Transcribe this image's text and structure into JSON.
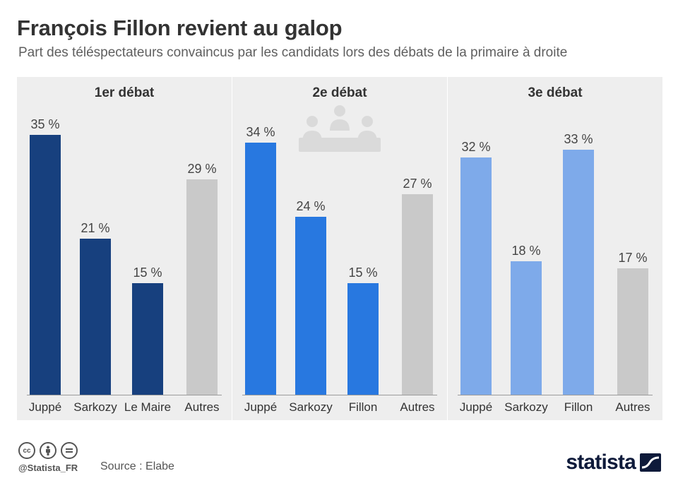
{
  "title": "François Fillon revient au galop",
  "subtitle": "Part des téléspectateurs convaincus par les candidats lors des débats de la primaire à droite",
  "chart_data": [
    {
      "type": "bar",
      "title": "1er débat",
      "categories": [
        "Juppé",
        "Sarkozy",
        "Le Maire",
        "Autres"
      ],
      "values": [
        35,
        21,
        15,
        29
      ],
      "value_labels": [
        "35 %",
        "21 %",
        "15 %",
        "29 %"
      ],
      "colors": [
        "#17407e",
        "#17407e",
        "#17407e",
        "#c9c9c9"
      ],
      "ylim": [
        0,
        35
      ]
    },
    {
      "type": "bar",
      "title": "2e débat",
      "categories": [
        "Juppé",
        "Sarkozy",
        "Fillon",
        "Autres"
      ],
      "values": [
        34,
        24,
        15,
        27
      ],
      "value_labels": [
        "34 %",
        "24 %",
        "15 %",
        "27 %"
      ],
      "colors": [
        "#2878e0",
        "#2878e0",
        "#2878e0",
        "#c9c9c9"
      ],
      "ylim": [
        0,
        35
      ]
    },
    {
      "type": "bar",
      "title": "3e débat",
      "categories": [
        "Juppé",
        "Sarkozy",
        "Fillon",
        "Autres"
      ],
      "values": [
        32,
        18,
        33,
        17
      ],
      "value_labels": [
        "32 %",
        "18 %",
        "33 %",
        "17 %"
      ],
      "colors": [
        "#7eaaea",
        "#7eaaea",
        "#7eaaea",
        "#c9c9c9"
      ],
      "ylim": [
        0,
        35
      ]
    }
  ],
  "footer": {
    "handle": "@Statista_FR",
    "source": "Source : Elabe",
    "logo": "statista",
    "license_icons": [
      "cc-icon",
      "attribution-icon",
      "no-derivatives-icon"
    ]
  }
}
